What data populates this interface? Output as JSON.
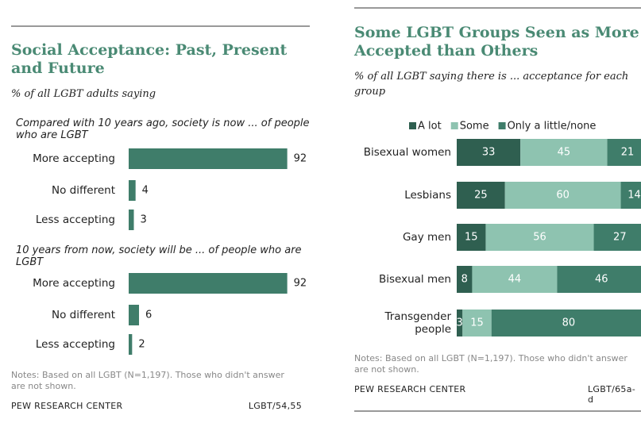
{
  "chart_data": [
    {
      "type": "bar",
      "title": "Social Acceptance: Past, Present and Future",
      "subtitle": "% of all LGBT adults saying",
      "color": "#3f7d6a",
      "groups": [
        {
          "heading": "Compared with 10 years ago, society is now ... of people who are LGBT",
          "categories": [
            "More accepting",
            "No different",
            "Less accepting"
          ],
          "values": [
            92,
            4,
            3
          ]
        },
        {
          "heading": "10 years from now, society will be ... of people who are LGBT",
          "categories": [
            "More accepting",
            "No different",
            "Less accepting"
          ],
          "values": [
            92,
            6,
            2
          ]
        }
      ],
      "notes": "Notes: Based on all LGBT (N=1,197). Those who didn't answer are not shown.",
      "source": "PEW RESEARCH CENTER",
      "code": "LGBT/54,55"
    },
    {
      "type": "stacked_bar",
      "title": "Some LGBT Groups Seen as More Accepted than Others",
      "subtitle": "% of all LGBT saying there is ... acceptance for each group",
      "categories": [
        "Bisexual women",
        "Lesbians",
        "Gay men",
        "Bisexual men",
        "Transgender people"
      ],
      "series": [
        {
          "name": "A lot",
          "color": "#2f5f50",
          "values": [
            33,
            25,
            15,
            8,
            3
          ]
        },
        {
          "name": "Some",
          "color": "#8ec3b0",
          "values": [
            45,
            60,
            56,
            44,
            15
          ]
        },
        {
          "name": "Only a little/none",
          "color": "#3f7d6a",
          "values": [
            21,
            14,
            27,
            46,
            80
          ]
        }
      ],
      "notes": "Notes: Based on all LGBT (N=1,197). Those who didn't answer are not shown.",
      "source": "PEW RESEARCH CENTER",
      "code": "LGBT/65a-d"
    }
  ]
}
